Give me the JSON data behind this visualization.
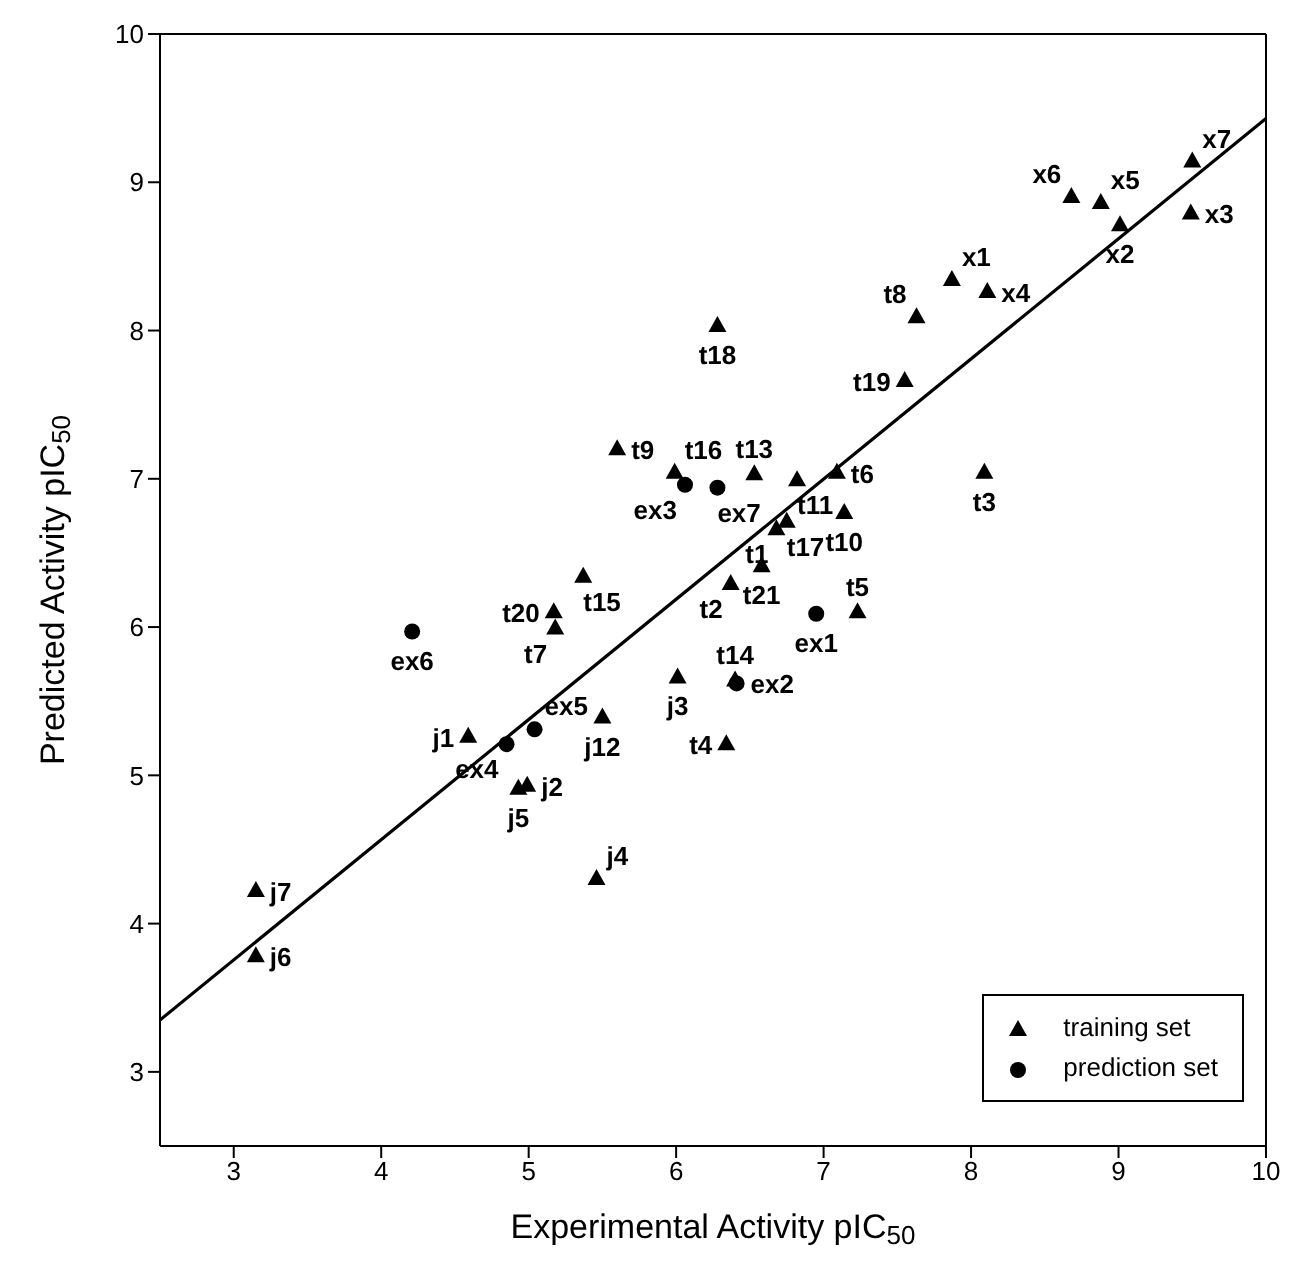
{
  "chart_data": {
    "type": "scatter",
    "xlabel": "Experimental Activity pIC$_{50}$",
    "ylabel": "Predicted Activity pIC$_{50}$",
    "xlim": [
      2.5,
      10
    ],
    "ylim": [
      2.5,
      10
    ],
    "xticks": [
      3,
      4,
      5,
      6,
      7,
      8,
      9,
      10
    ],
    "yticks": [
      3,
      4,
      5,
      6,
      7,
      8,
      9,
      10
    ],
    "grid": false,
    "legend": "bottom right",
    "series": [
      {
        "name": "training set",
        "type": "scatter",
        "marker": "triangle",
        "color": "#000000",
        "x": [
          5.6,
          5.99,
          5.37,
          5.17,
          5.18,
          4.59,
          5.5,
          6.01,
          4.99,
          4.93,
          5.46,
          3.15,
          3.15,
          6.28,
          6.53,
          6.82,
          7.09,
          7.14,
          6.75,
          6.68,
          6.58,
          6.37,
          7.23,
          6.4,
          6.34,
          8.09,
          7.55,
          7.63,
          7.87,
          8.11,
          9.01,
          9.49,
          8.68,
          8.88,
          9.5
        ],
        "values": [
          7.2,
          7.04,
          6.34,
          6.1,
          5.99,
          5.26,
          5.39,
          5.66,
          4.93,
          4.91,
          4.3,
          4.22,
          3.78,
          8.03,
          7.03,
          6.99,
          7.04,
          6.77,
          6.71,
          6.66,
          6.41,
          6.29,
          6.1,
          5.64,
          5.21,
          7.04,
          7.66,
          8.09,
          8.34,
          8.26,
          8.71,
          8.79,
          8.9,
          8.86,
          9.14
        ],
        "value_labels": [
          "t9",
          "t16",
          "t15",
          "t20",
          "t7",
          "j1",
          "j12",
          "j3",
          "j2",
          "j5",
          "j4",
          "j7",
          "j6",
          "t18",
          "t13",
          "t11",
          "t6",
          "t10",
          "t17",
          "t1",
          "t21",
          "t2",
          "t5",
          "t14",
          "t4",
          "t3",
          "t19",
          "t8",
          "x1",
          "x4",
          "x2",
          "x3",
          "x6",
          "x5",
          "x7"
        ]
      },
      {
        "name": "prediction set",
        "type": "scatter",
        "marker": "circle",
        "color": "#000000",
        "x": [
          6.06,
          6.28,
          4.21,
          4.85,
          5.04,
          6.95,
          6.41
        ],
        "values": [
          6.96,
          6.94,
          5.97,
          5.21,
          5.31,
          6.09,
          5.62
        ],
        "value_labels": [
          "ex3",
          "ex7",
          "ex6",
          "ex4",
          "ex5",
          "ex1",
          "ex2"
        ]
      },
      {
        "type": "line",
        "color": "#000000",
        "x": [
          2.5,
          10
        ],
        "values": [
          3.35,
          9.43
        ]
      }
    ]
  }
}
